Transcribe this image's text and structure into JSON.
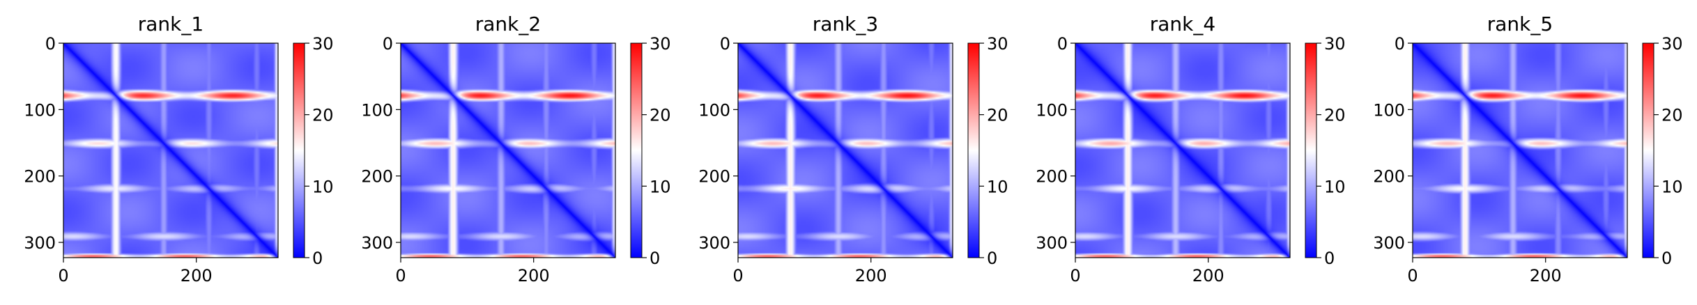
{
  "chart_data": [
    {
      "type": "heatmap",
      "title": "rank_1",
      "xlim": [
        0,
        323
      ],
      "ylim": [
        323,
        0
      ],
      "xticks": [
        "0",
        "200"
      ],
      "yticks": [
        "0",
        "100",
        "200",
        "300"
      ],
      "colorbar": {
        "cmap": "bwr",
        "range": [
          0,
          30
        ],
        "ticks": [
          "0",
          "10",
          "20",
          "30"
        ]
      },
      "features": {
        "diagonal": 0,
        "red_bands_rows": [
          {
            "row": 78,
            "value": 28
          },
          {
            "row": 150,
            "value": 17
          },
          {
            "row": 218,
            "value": 14
          },
          {
            "row": 290,
            "value": 13
          },
          {
            "row": 320,
            "value": 25
          }
        ],
        "light_columns": [
          {
            "col": 80,
            "value": 13
          },
          {
            "col": 75,
            "value": 10
          }
        ],
        "background": 6
      }
    },
    {
      "type": "heatmap",
      "title": "rank_2",
      "xlim": [
        0,
        323
      ],
      "ylim": [
        323,
        0
      ],
      "xticks": [
        "0",
        "200"
      ],
      "yticks": [
        "0",
        "100",
        "200",
        "300"
      ],
      "colorbar": {
        "cmap": "bwr",
        "range": [
          0,
          30
        ],
        "ticks": [
          "0",
          "10",
          "20",
          "30"
        ]
      },
      "features": {
        "diagonal": 0,
        "red_bands_rows": [
          {
            "row": 78,
            "value": 29
          },
          {
            "row": 150,
            "value": 19
          },
          {
            "row": 218,
            "value": 15
          },
          {
            "row": 290,
            "value": 13
          },
          {
            "row": 320,
            "value": 25
          }
        ],
        "light_columns": [
          {
            "col": 80,
            "value": 13
          },
          {
            "col": 75,
            "value": 10
          }
        ],
        "background": 6
      }
    },
    {
      "type": "heatmap",
      "title": "rank_3",
      "xlim": [
        0,
        323
      ],
      "ylim": [
        323,
        0
      ],
      "xticks": [
        "0",
        "200"
      ],
      "yticks": [
        "0",
        "100",
        "200",
        "300"
      ],
      "colorbar": {
        "cmap": "bwr",
        "range": [
          0,
          30
        ],
        "ticks": [
          "0",
          "10",
          "20",
          "30"
        ]
      },
      "features": {
        "diagonal": 0,
        "red_bands_rows": [
          {
            "row": 78,
            "value": 29
          },
          {
            "row": 150,
            "value": 19
          },
          {
            "row": 218,
            "value": 16
          },
          {
            "row": 290,
            "value": 13
          },
          {
            "row": 320,
            "value": 25
          }
        ],
        "light_columns": [
          {
            "col": 80,
            "value": 13
          },
          {
            "col": 75,
            "value": 10
          }
        ],
        "background": 6
      }
    },
    {
      "type": "heatmap",
      "title": "rank_4",
      "xlim": [
        0,
        323
      ],
      "ylim": [
        323,
        0
      ],
      "xticks": [
        "0",
        "200"
      ],
      "yticks": [
        "0",
        "100",
        "200",
        "300"
      ],
      "colorbar": {
        "cmap": "bwr",
        "range": [
          0,
          30
        ],
        "ticks": [
          "0",
          "10",
          "20",
          "30"
        ]
      },
      "features": {
        "diagonal": 0,
        "red_bands_rows": [
          {
            "row": 78,
            "value": 29
          },
          {
            "row": 150,
            "value": 20
          },
          {
            "row": 218,
            "value": 15
          },
          {
            "row": 290,
            "value": 13
          },
          {
            "row": 320,
            "value": 25
          }
        ],
        "light_columns": [
          {
            "col": 80,
            "value": 13
          },
          {
            "col": 75,
            "value": 10
          }
        ],
        "background": 6
      }
    },
    {
      "type": "heatmap",
      "title": "rank_5",
      "xlim": [
        0,
        323
      ],
      "ylim": [
        323,
        0
      ],
      "xticks": [
        "0",
        "200"
      ],
      "yticks": [
        "0",
        "100",
        "200",
        "300"
      ],
      "colorbar": {
        "cmap": "bwr",
        "range": [
          0,
          30
        ],
        "ticks": [
          "0",
          "10",
          "20",
          "30"
        ]
      },
      "features": {
        "diagonal": 0,
        "red_bands_rows": [
          {
            "row": 78,
            "value": 29
          },
          {
            "row": 150,
            "value": 19
          },
          {
            "row": 218,
            "value": 15
          },
          {
            "row": 290,
            "value": 13
          },
          {
            "row": 320,
            "value": 25
          }
        ],
        "light_columns": [
          {
            "col": 80,
            "value": 13
          },
          {
            "col": 75,
            "value": 10
          }
        ],
        "background": 6
      }
    }
  ]
}
